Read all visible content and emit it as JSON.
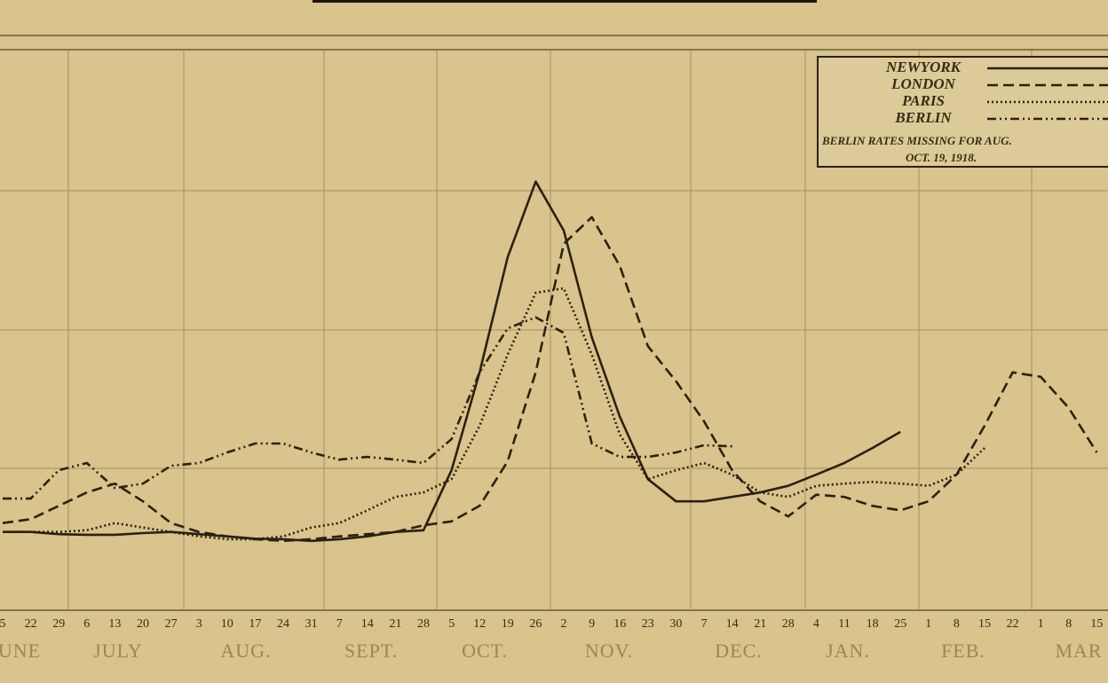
{
  "chart_data": {
    "type": "line",
    "categories": [
      "5",
      "22",
      "29",
      "6",
      "13",
      "20",
      "27",
      "3",
      "10",
      "17",
      "24",
      "31",
      "7",
      "14",
      "21",
      "28",
      "5",
      "12",
      "19",
      "26",
      "2",
      "9",
      "16",
      "23",
      "30",
      "7",
      "14",
      "21",
      "28",
      "4",
      "11",
      "18",
      "25",
      "1",
      "8",
      "15",
      "22",
      "1",
      "8",
      "15"
    ],
    "months": [
      "UNE",
      "JULY",
      "AUG.",
      "SEPT.",
      "OCT.",
      "NOV.",
      "DEC.",
      "JAN.",
      "FEB.",
      "MAR"
    ],
    "ylim": [
      0,
      100
    ],
    "series": [
      {
        "name": "NEWYORK",
        "style": "solid",
        "color": "#2b2112",
        "values": [
          13.6,
          13.6,
          13.2,
          13.1,
          13.1,
          13.4,
          13.6,
          13.2,
          12.8,
          12.4,
          12.3,
          12.0,
          12.3,
          12.8,
          13.6,
          13.9,
          24.7,
          42.3,
          63.0,
          76.6,
          67.8,
          48.6,
          34.3,
          23.1,
          19.1,
          19.1,
          19.9,
          20.7,
          21.9,
          23.9,
          26.0,
          28.7,
          31.6,
          null,
          null,
          null,
          null,
          null,
          null,
          null
        ]
      },
      {
        "name": "LONDON",
        "style": "dashed",
        "color": "#2b2112",
        "values": [
          15.2,
          15.9,
          18.3,
          20.7,
          22.3,
          19.1,
          15.2,
          13.6,
          12.8,
          12.3,
          12.0,
          12.3,
          12.8,
          13.2,
          13.6,
          14.8,
          15.5,
          18.3,
          26.3,
          42.3,
          65.4,
          70.2,
          61.4,
          47.0,
          40.7,
          33.5,
          24.7,
          19.1,
          16.4,
          20.3,
          19.9,
          18.3,
          17.5,
          19.1,
          23.9,
          32.7,
          42.3,
          41.5,
          35.9,
          27.9
        ]
      },
      {
        "name": "PARIS",
        "style": "dotted",
        "color": "#2b2112",
        "values": [
          13.6,
          13.6,
          13.6,
          13.9,
          15.2,
          14.4,
          13.6,
          12.8,
          12.3,
          12.3,
          12.8,
          14.4,
          15.2,
          17.5,
          19.9,
          20.7,
          23.1,
          32.7,
          45.5,
          56.6,
          57.4,
          45.5,
          31.1,
          23.1,
          24.7,
          26.0,
          23.9,
          20.7,
          19.9,
          21.9,
          22.3,
          22.6,
          22.3,
          21.9,
          23.9,
          28.7,
          null,
          null,
          null,
          null
        ]
      },
      {
        "name": "BERLIN",
        "style": "dashdot",
        "color": "#2b2112",
        "values": [
          19.6,
          19.6,
          24.7,
          26.0,
          21.5,
          22.3,
          25.5,
          26.0,
          27.9,
          29.5,
          29.5,
          27.9,
          26.6,
          27.1,
          26.6,
          26.0,
          30.3,
          42.3,
          50.2,
          52.2,
          49.4,
          29.5,
          27.1,
          27.1,
          27.9,
          29.2,
          29.0,
          null,
          null,
          null,
          null,
          null,
          null,
          null,
          null,
          null,
          null,
          null,
          null,
          null
        ]
      }
    ],
    "legend_note": [
      "BERLIN RATES MISSING FOR AUG.",
      "OCT. 19, 1918."
    ]
  }
}
